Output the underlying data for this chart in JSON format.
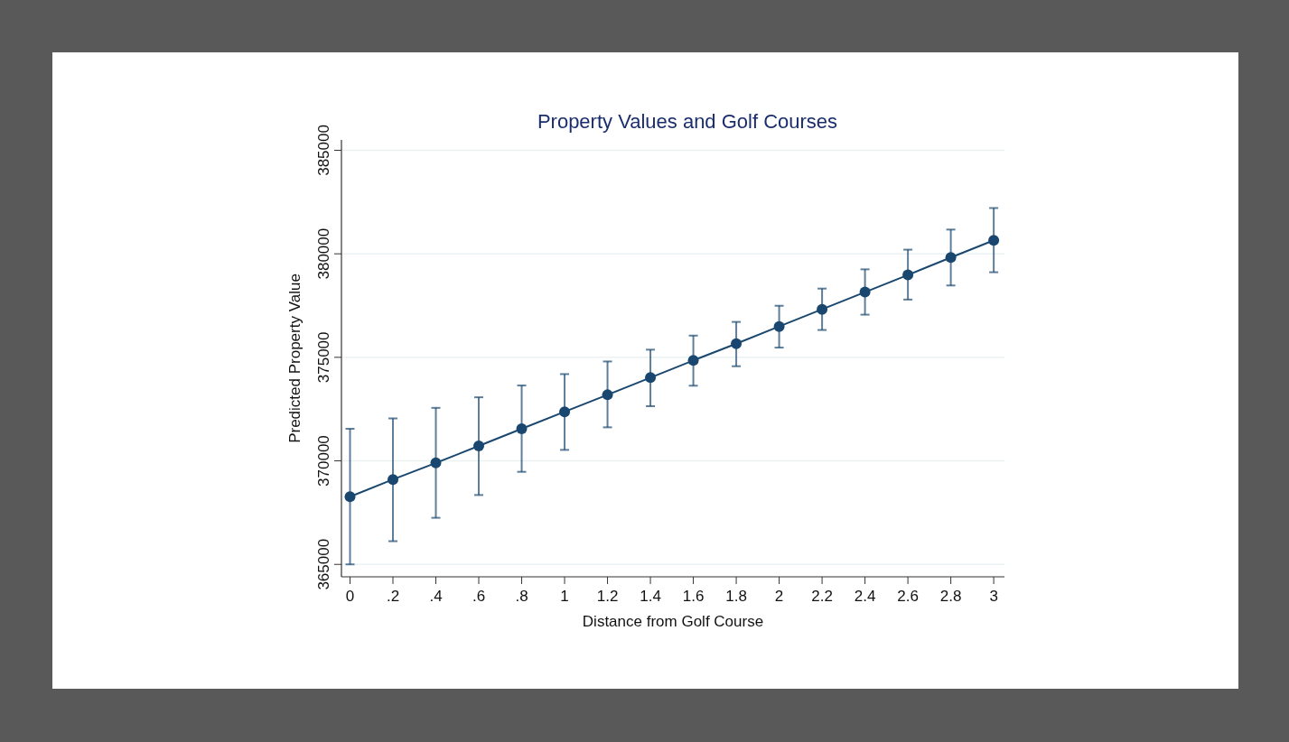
{
  "chart_data": {
    "type": "line",
    "title": "Property Values and Golf Courses",
    "xlabel": "Distance from Golf Course",
    "ylabel": "Predicted Property Value",
    "x": [
      0,
      0.2,
      0.4,
      0.6,
      0.8,
      1,
      1.2,
      1.4,
      1.6,
      1.8,
      2,
      2.2,
      2.4,
      2.6,
      2.8,
      3
    ],
    "series": [
      {
        "color": "#1a476f",
        "values": [
          368270,
          369100,
          369900,
          370720,
          371550,
          372370,
          373190,
          374020,
          374850,
          375660,
          376490,
          377320,
          378150,
          378980,
          379820,
          380650
        ],
        "errors": [
          [
            365000,
            371550
          ],
          [
            366120,
            372050
          ],
          [
            367250,
            372560
          ],
          [
            368350,
            373070
          ],
          [
            369470,
            373640
          ],
          [
            370530,
            374190
          ],
          [
            371620,
            374800
          ],
          [
            372640,
            375370
          ],
          [
            373630,
            376050
          ],
          [
            374570,
            376710
          ],
          [
            375470,
            377490
          ],
          [
            376320,
            378320
          ],
          [
            377060,
            379250
          ],
          [
            377790,
            380200
          ],
          [
            378470,
            381170
          ],
          [
            379110,
            382210
          ]
        ]
      }
    ],
    "xlim": [
      -0.04,
      3.05
    ],
    "ylim": [
      364400,
      385500
    ],
    "xticks": [
      0,
      {
        "value": 0.2,
        "label": ".2"
      },
      {
        "value": 0.4,
        "label": ".4"
      },
      {
        "value": 0.6,
        "label": ".6"
      },
      {
        "value": 0.8,
        "label": ".8"
      },
      1,
      1.2,
      1.4,
      1.6,
      1.8,
      2,
      2.2,
      2.4,
      2.6,
      2.8,
      3
    ],
    "yticks": [
      365000,
      370000,
      375000,
      380000,
      385000
    ],
    "grid": "y",
    "marker": "circle",
    "line_style": "solid"
  }
}
